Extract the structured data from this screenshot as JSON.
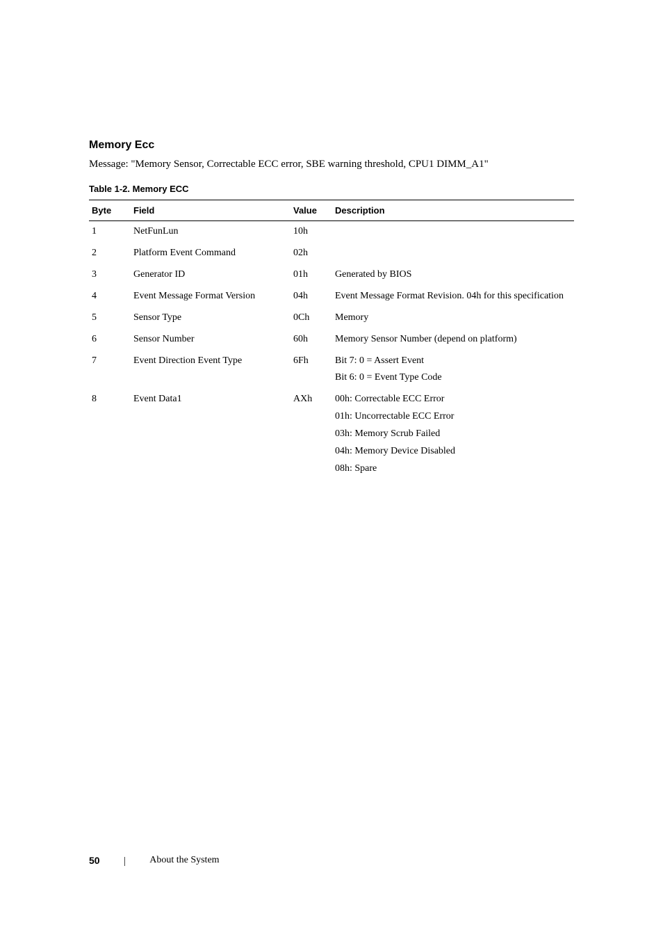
{
  "section": {
    "heading": "Memory Ecc",
    "message": "Message: \"Memory Sensor, Correctable ECC error, SBE warning threshold, CPU1 DIMM_A1\""
  },
  "table": {
    "caption": "Table 1-2.    Memory ECC",
    "headers": {
      "byte": "Byte",
      "field": "Field",
      "value": "Value",
      "description": "Description"
    },
    "rows": [
      {
        "byte": "1",
        "field": "NetFunLun",
        "value": "10h",
        "description": []
      },
      {
        "byte": "2",
        "field": "Platform Event Command",
        "value": "02h",
        "description": []
      },
      {
        "byte": "3",
        "field": "Generator ID",
        "value": "01h",
        "description": [
          "Generated by BIOS"
        ]
      },
      {
        "byte": "4",
        "field": "Event Message Format Version",
        "value": "04h",
        "description": [
          "Event Message Format Revision. 04h for this specification"
        ]
      },
      {
        "byte": "5",
        "field": "Sensor Type",
        "value": "0Ch",
        "description": [
          "Memory"
        ]
      },
      {
        "byte": "6",
        "field": "Sensor Number",
        "value": "60h",
        "description": [
          "Memory Sensor Number (depend on platform)"
        ]
      },
      {
        "byte": "7",
        "field": "Event Direction Event Type",
        "value": "6Fh",
        "description": [
          "Bit 7: 0 = Assert Event",
          "Bit 6: 0 = Event Type Code"
        ]
      },
      {
        "byte": "8",
        "field": "Event Data1",
        "value": "AXh",
        "description": [
          "00h: Correctable ECC Error",
          "01h: Uncorrectable ECC Error",
          "03h: Memory Scrub Failed",
          "04h: Memory Device Disabled",
          "08h: Spare"
        ]
      }
    ]
  },
  "footer": {
    "page": "50",
    "divider": "|",
    "title": "About the System"
  }
}
